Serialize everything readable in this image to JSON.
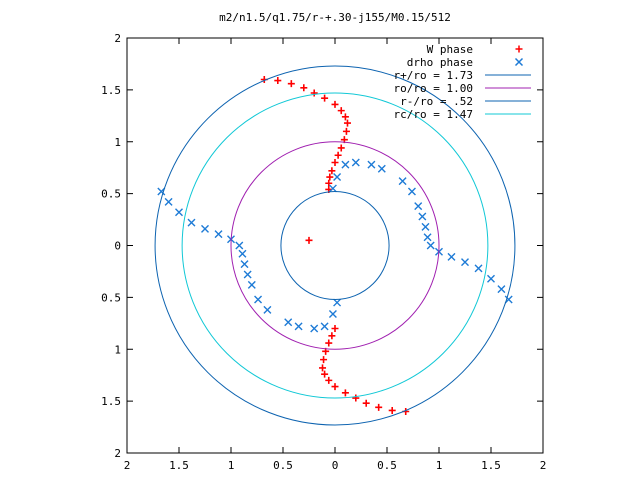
{
  "chart_data": {
    "type": "scatter",
    "title": "m2/n1.5/q1.75/r-+.30-j155/M0.15/512",
    "xlabel": "",
    "ylabel": "",
    "xlim": [
      -2,
      2
    ],
    "ylim": [
      -2,
      2
    ],
    "x_tick_labels": [
      "2",
      "1.5",
      "1",
      "0.5",
      "0",
      "0.5",
      "1",
      "1.5",
      "2"
    ],
    "y_tick_labels": [
      "2",
      "1.5",
      "1",
      "0.5",
      "0",
      "0.5",
      "1",
      "1.5",
      "2"
    ],
    "grid": false,
    "legend_position": "top-right",
    "series": [
      {
        "name": "W phase",
        "kind": "points",
        "marker": "plus",
        "color": "#ff0000",
        "points": [
          [
            -0.68,
            1.6
          ],
          [
            -0.55,
            1.59
          ],
          [
            -0.42,
            1.56
          ],
          [
            -0.3,
            1.52
          ],
          [
            -0.2,
            1.47
          ],
          [
            -0.1,
            1.42
          ],
          [
            0.0,
            1.36
          ],
          [
            0.06,
            1.3
          ],
          [
            0.1,
            1.24
          ],
          [
            0.12,
            1.18
          ],
          [
            0.11,
            1.1
          ],
          [
            0.09,
            1.02
          ],
          [
            0.06,
            0.94
          ],
          [
            0.03,
            0.87
          ],
          [
            0.0,
            0.8
          ],
          [
            -0.03,
            0.72
          ],
          [
            -0.05,
            0.66
          ],
          [
            -0.06,
            0.6
          ],
          [
            -0.06,
            0.54
          ],
          [
            -0.25,
            0.05
          ],
          [
            0.68,
            -1.6
          ],
          [
            0.55,
            -1.59
          ],
          [
            0.42,
            -1.56
          ],
          [
            0.3,
            -1.52
          ],
          [
            0.2,
            -1.47
          ],
          [
            0.1,
            -1.42
          ],
          [
            0.0,
            -1.36
          ],
          [
            -0.06,
            -1.3
          ],
          [
            -0.1,
            -1.24
          ],
          [
            -0.12,
            -1.18
          ],
          [
            -0.11,
            -1.1
          ],
          [
            -0.09,
            -1.02
          ],
          [
            -0.06,
            -0.94
          ],
          [
            -0.03,
            -0.87
          ],
          [
            0.0,
            -0.8
          ]
        ]
      },
      {
        "name": "drho phase",
        "kind": "points",
        "marker": "cross",
        "color": "#1e7bd6",
        "points": [
          [
            -1.67,
            0.52
          ],
          [
            -1.6,
            0.42
          ],
          [
            -1.5,
            0.32
          ],
          [
            -1.38,
            0.22
          ],
          [
            -1.25,
            0.16
          ],
          [
            -1.12,
            0.11
          ],
          [
            -1.0,
            0.06
          ],
          [
            -0.92,
            0.0
          ],
          [
            -0.89,
            -0.08
          ],
          [
            -0.87,
            -0.18
          ],
          [
            -0.84,
            -0.28
          ],
          [
            -0.8,
            -0.38
          ],
          [
            -0.74,
            -0.52
          ],
          [
            -0.65,
            -0.62
          ],
          [
            -0.45,
            -0.74
          ],
          [
            -0.35,
            -0.78
          ],
          [
            -0.2,
            -0.8
          ],
          [
            -0.1,
            -0.78
          ],
          [
            -0.02,
            -0.66
          ],
          [
            0.02,
            -0.55
          ],
          [
            1.67,
            -0.52
          ],
          [
            1.6,
            -0.42
          ],
          [
            1.5,
            -0.32
          ],
          [
            1.38,
            -0.22
          ],
          [
            1.25,
            -0.16
          ],
          [
            1.12,
            -0.11
          ],
          [
            1.0,
            -0.06
          ],
          [
            0.92,
            0.0
          ],
          [
            0.89,
            0.08
          ],
          [
            0.87,
            0.18
          ],
          [
            0.84,
            0.28
          ],
          [
            0.8,
            0.38
          ],
          [
            0.74,
            0.52
          ],
          [
            0.65,
            0.62
          ],
          [
            0.45,
            0.74
          ],
          [
            0.35,
            0.78
          ],
          [
            0.2,
            0.8
          ],
          [
            0.1,
            0.78
          ],
          [
            0.02,
            0.66
          ],
          [
            -0.02,
            0.55
          ]
        ]
      },
      {
        "name": "r+/ro = 1.73",
        "kind": "circle",
        "radius": 1.73,
        "color": "#0d63b0"
      },
      {
        "name": "ro/ro = 1.00",
        "kind": "circle",
        "radius": 1.0,
        "color": "#a020b0"
      },
      {
        "name": "r-/ro = .52",
        "kind": "circle",
        "radius": 0.52,
        "color": "#0d63b0"
      },
      {
        "name": "rc/ro = 1.47",
        "kind": "circle",
        "radius": 1.47,
        "color": "#11c8d6"
      }
    ]
  }
}
